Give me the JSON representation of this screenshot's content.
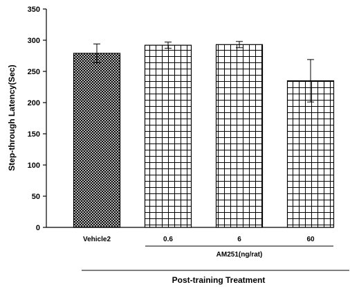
{
  "chart_data": {
    "type": "bar",
    "title": "",
    "ylabel": "Step-through Latency(Sec)",
    "xlabel": "Post-training Treatment",
    "group_label": "AM251(ng/rat)",
    "ylim": [
      0,
      350
    ],
    "yticks": [
      0,
      50,
      100,
      150,
      200,
      250,
      300,
      350
    ],
    "ytick_labels": [
      "0",
      "50",
      "100",
      "150",
      "200",
      "250",
      "300",
      "350"
    ],
    "categories": [
      "Vehicle2",
      "0.6",
      "6",
      "60"
    ],
    "values": [
      279,
      292,
      293,
      235
    ],
    "errors": [
      15,
      5,
      5,
      34
    ],
    "patterns": [
      "crosshatch-fine",
      "grid",
      "grid",
      "grid"
    ],
    "grid": false,
    "legend": "none"
  }
}
